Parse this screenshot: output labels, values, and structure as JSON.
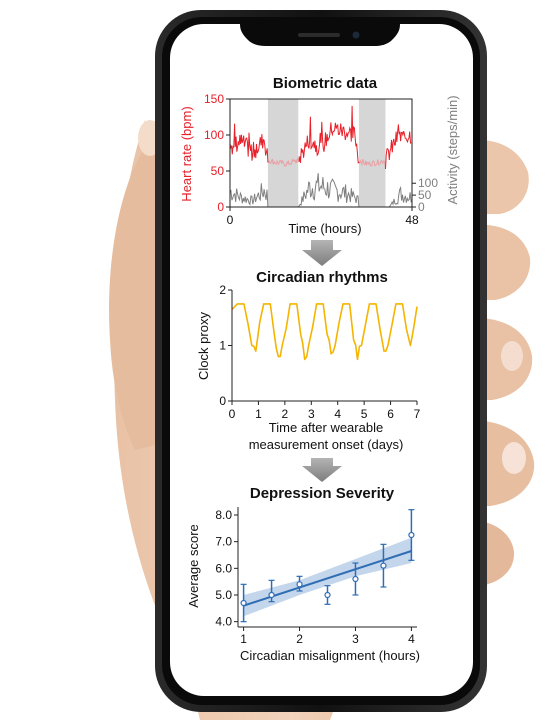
{
  "colors": {
    "heart_rate": "#e8202a",
    "heart_rate_faded": "#e8a0a4",
    "activity": "#808080",
    "shading": "#d6d6d6",
    "circadian": "#f5b400",
    "depression_line": "#2f6db5",
    "depression_band": "#b9cfe8",
    "arrow": "#9a9a9a"
  },
  "chart_data": [
    {
      "type": "line",
      "title": "Biometric data",
      "xlabel": "Time (hours)",
      "ylabel": "Heart rate (bpm)",
      "ylabel_right": "Activity (steps/min)",
      "xlim": [
        0,
        48
      ],
      "ylim": [
        0,
        150
      ],
      "xticks": [
        "0",
        "48"
      ],
      "yticks": [
        "0",
        "50",
        "100",
        "150"
      ],
      "yticks_right": [
        "0",
        "50",
        "100"
      ],
      "shaded_intervals_hours": [
        [
          10,
          18
        ],
        [
          34,
          41
        ]
      ],
      "series": [
        {
          "key": "heart_rate",
          "x": [
            0,
            3,
            6,
            9,
            10,
            12,
            15,
            18,
            21,
            24,
            27,
            30,
            33,
            34,
            36,
            39,
            41,
            44,
            47
          ],
          "values": [
            85,
            90,
            75,
            95,
            65,
            62,
            60,
            65,
            95,
            80,
            110,
            105,
            100,
            65,
            60,
            62,
            65,
            95,
            100
          ]
        },
        {
          "key": "activity",
          "x": [
            0,
            3,
            6,
            9,
            12,
            15,
            18,
            21,
            24,
            27,
            30,
            33,
            36,
            39,
            42,
            45,
            47
          ],
          "values": [
            30,
            18,
            12,
            32,
            0,
            0,
            0,
            38,
            40,
            32,
            28,
            18,
            0,
            0,
            0,
            25,
            20
          ]
        }
      ]
    },
    {
      "type": "line",
      "title": "Circadian rhythms",
      "xlabel": "Time after wearable measurement onset (days)",
      "ylabel": "Clock proxy",
      "xlim": [
        0,
        7
      ],
      "ylim": [
        0,
        2
      ],
      "xticks": [
        "0",
        "1",
        "2",
        "3",
        "4",
        "5",
        "6",
        "7"
      ],
      "yticks": [
        "0",
        "1",
        "2"
      ],
      "series": [
        {
          "key": "clock_proxy",
          "x": [
            0,
            0.2,
            0.45,
            0.6,
            0.75,
            0.9,
            1.2,
            1.45,
            1.6,
            1.75,
            1.9,
            2.2,
            2.45,
            2.6,
            2.75,
            2.9,
            3.2,
            3.45,
            3.6,
            3.75,
            3.9,
            4.2,
            4.45,
            4.6,
            4.75,
            4.9,
            5.2,
            5.45,
            5.6,
            5.75,
            5.9,
            6.2,
            6.45,
            6.6,
            6.75,
            6.9,
            7
          ],
          "values": [
            1.65,
            1.75,
            1.75,
            1.4,
            1.0,
            0.9,
            1.75,
            1.75,
            1.2,
            0.8,
            1.0,
            1.75,
            1.75,
            1.2,
            0.75,
            1.0,
            1.75,
            1.75,
            1.2,
            0.85,
            1.0,
            1.75,
            1.75,
            1.1,
            0.75,
            1.0,
            1.75,
            1.75,
            1.3,
            0.9,
            1.0,
            1.75,
            1.75,
            1.3,
            1.0,
            1.4,
            1.7
          ]
        }
      ]
    },
    {
      "type": "scatter",
      "title": "Depression Severity",
      "xlabel": "Circadian misalignment (hours)",
      "ylabel": "Average  score",
      "xlim": [
        0.9,
        4.1
      ],
      "ylim": [
        3.8,
        8.3
      ],
      "xticks": [
        "1",
        "2",
        "3",
        "4"
      ],
      "yticks": [
        "4.0",
        "5.0",
        "6.0",
        "7.0",
        "8.0"
      ],
      "points": {
        "x": [
          1.0,
          1.5,
          2.0,
          2.5,
          3.0,
          3.5,
          4.0
        ],
        "y": [
          4.7,
          5.0,
          5.4,
          5.0,
          5.6,
          6.1,
          7.25
        ],
        "err_low": [
          4.0,
          4.75,
          5.15,
          4.65,
          5.0,
          5.3,
          6.3
        ],
        "err_high": [
          5.4,
          5.55,
          5.7,
          5.35,
          6.2,
          6.9,
          8.2
        ]
      },
      "fit": {
        "x": [
          1.0,
          4.0
        ],
        "y": [
          4.6,
          6.65
        ]
      },
      "band": {
        "x": [
          1.0,
          2.0,
          3.0,
          4.0
        ],
        "low": [
          4.2,
          5.0,
          5.7,
          6.2
        ],
        "high": [
          5.0,
          5.55,
          6.35,
          7.15
        ]
      }
    }
  ]
}
